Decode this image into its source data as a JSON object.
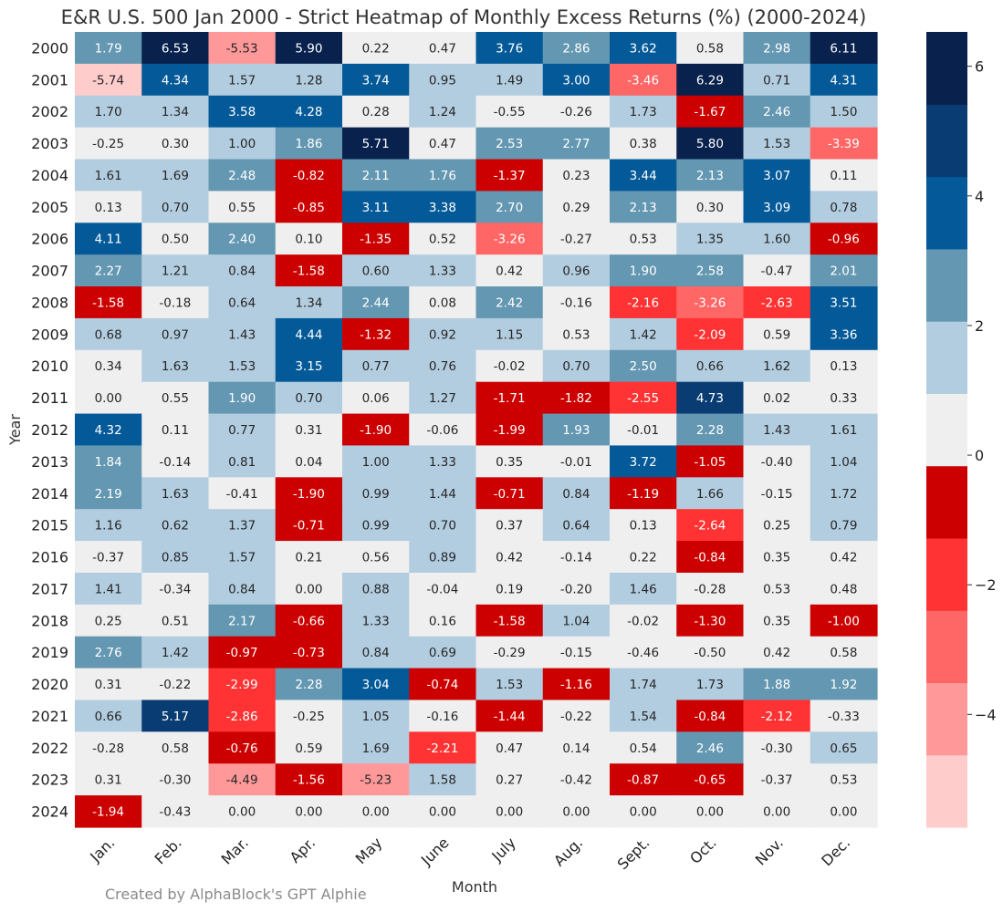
{
  "chart_data": {
    "type": "heatmap",
    "title": "E&R U.S. 500 Jan 2000 - Strict Heatmap of Monthly Excess Returns (%) (2000-2024)",
    "xlabel": "Month",
    "ylabel": "Year",
    "months": [
      "Jan.",
      "Feb.",
      "Mar.",
      "Apr.",
      "May",
      "June",
      "July",
      "Aug.",
      "Sept.",
      "Oct.",
      "Nov.",
      "Dec."
    ],
    "years": [
      "2000",
      "2001",
      "2002",
      "2003",
      "2004",
      "2005",
      "2006",
      "2007",
      "2008",
      "2009",
      "2010",
      "2011",
      "2012",
      "2013",
      "2014",
      "2015",
      "2016",
      "2017",
      "2018",
      "2019",
      "2020",
      "2021",
      "2022",
      "2023",
      "2024"
    ],
    "values": [
      [
        "1.79",
        "6.53",
        "-5.53",
        "5.90",
        "0.22",
        "0.47",
        "3.76",
        "2.86",
        "3.62",
        "0.58",
        "2.98",
        "6.11"
      ],
      [
        "-5.74",
        "4.34",
        "1.57",
        "1.28",
        "3.74",
        "0.95",
        "1.49",
        "3.00",
        "-3.46",
        "6.29",
        "0.71",
        "4.31"
      ],
      [
        "1.70",
        "1.34",
        "3.58",
        "4.28",
        "0.28",
        "1.24",
        "-0.55",
        "-0.26",
        "1.73",
        "-1.67",
        "2.46",
        "1.50"
      ],
      [
        "-0.25",
        "0.30",
        "1.00",
        "1.86",
        "5.71",
        "0.47",
        "2.53",
        "2.77",
        "0.38",
        "5.80",
        "1.53",
        "-3.39"
      ],
      [
        "1.61",
        "1.69",
        "2.48",
        "-0.82",
        "2.11",
        "1.76",
        "-1.37",
        "0.23",
        "3.44",
        "2.13",
        "3.07",
        "0.11"
      ],
      [
        "0.13",
        "0.70",
        "0.55",
        "-0.85",
        "3.11",
        "3.38",
        "2.70",
        "0.29",
        "2.13",
        "0.30",
        "3.09",
        "0.78"
      ],
      [
        "4.11",
        "0.50",
        "2.40",
        "0.10",
        "-1.35",
        "0.52",
        "-3.26",
        "-0.27",
        "0.53",
        "1.35",
        "1.60",
        "-0.96"
      ],
      [
        "2.27",
        "1.21",
        "0.84",
        "-1.58",
        "0.60",
        "1.33",
        "0.42",
        "0.96",
        "1.90",
        "2.58",
        "-0.47",
        "2.01"
      ],
      [
        "-1.58",
        "-0.18",
        "0.64",
        "1.34",
        "2.44",
        "0.08",
        "2.42",
        "-0.16",
        "-2.16",
        "-3.26",
        "-2.63",
        "3.51"
      ],
      [
        "0.68",
        "0.97",
        "1.43",
        "4.44",
        "-1.32",
        "0.92",
        "1.15",
        "0.53",
        "1.42",
        "-2.09",
        "0.59",
        "3.36"
      ],
      [
        "0.34",
        "1.63",
        "1.53",
        "3.15",
        "0.77",
        "0.76",
        "-0.02",
        "0.70",
        "2.50",
        "0.66",
        "1.62",
        "0.13"
      ],
      [
        "0.00",
        "0.55",
        "1.90",
        "0.70",
        "0.06",
        "1.27",
        "-1.71",
        "-1.82",
        "-2.55",
        "4.73",
        "0.02",
        "0.33"
      ],
      [
        "4.32",
        "0.11",
        "0.77",
        "0.31",
        "-1.90",
        "-0.06",
        "-1.99",
        "1.93",
        "-0.01",
        "2.28",
        "1.43",
        "1.61"
      ],
      [
        "1.84",
        "-0.14",
        "0.81",
        "0.04",
        "1.00",
        "1.33",
        "0.35",
        "-0.01",
        "3.72",
        "-1.05",
        "-0.40",
        "1.04"
      ],
      [
        "2.19",
        "1.63",
        "-0.41",
        "-1.90",
        "0.99",
        "1.44",
        "-0.71",
        "0.84",
        "-1.19",
        "1.66",
        "-0.15",
        "1.72"
      ],
      [
        "1.16",
        "0.62",
        "1.37",
        "-0.71",
        "0.99",
        "0.70",
        "0.37",
        "0.64",
        "0.13",
        "-2.64",
        "0.25",
        "0.79"
      ],
      [
        "-0.37",
        "0.85",
        "1.57",
        "0.21",
        "0.56",
        "0.89",
        "0.42",
        "-0.14",
        "0.22",
        "-0.84",
        "0.35",
        "0.42"
      ],
      [
        "1.41",
        "-0.34",
        "0.84",
        "0.00",
        "0.88",
        "-0.04",
        "0.19",
        "-0.20",
        "1.46",
        "-0.28",
        "0.53",
        "0.48"
      ],
      [
        "0.25",
        "0.51",
        "2.17",
        "-0.66",
        "1.33",
        "0.16",
        "-1.58",
        "1.04",
        "-0.02",
        "-1.30",
        "0.35",
        "-1.00"
      ],
      [
        "2.76",
        "1.42",
        "-0.97",
        "-0.73",
        "0.84",
        "0.69",
        "-0.29",
        "-0.15",
        "-0.46",
        "-0.50",
        "0.42",
        "0.58"
      ],
      [
        "0.31",
        "-0.22",
        "-2.99",
        "2.28",
        "3.04",
        "-0.74",
        "1.53",
        "-1.16",
        "1.74",
        "1.73",
        "1.88",
        "1.92"
      ],
      [
        "0.66",
        "5.17",
        "-2.86",
        "-0.25",
        "1.05",
        "-0.16",
        "-1.44",
        "-0.22",
        "1.54",
        "-0.84",
        "-2.12",
        "-0.33"
      ],
      [
        "-0.28",
        "0.58",
        "-0.76",
        "0.59",
        "1.69",
        "-2.21",
        "0.47",
        "0.14",
        "0.54",
        "2.46",
        "-0.30",
        "0.65"
      ],
      [
        "0.31",
        "-0.30",
        "-4.49",
        "-1.56",
        "-5.23",
        "1.58",
        "0.27",
        "-0.42",
        "-0.87",
        "-0.65",
        "-0.37",
        "0.53"
      ],
      [
        "-1.94",
        "-0.43",
        "0.00",
        "0.00",
        "0.00",
        "0.00",
        "0.00",
        "0.00",
        "0.00",
        "0.00",
        "0.00",
        "0.00"
      ]
    ],
    "color_bins": [
      {
        "min": 5.5,
        "color": "#08214d"
      },
      {
        "min": 4.5,
        "color": "#083c73"
      },
      {
        "min": 3.0,
        "color": "#045a98"
      },
      {
        "min": 1.75,
        "color": "#6497b1"
      },
      {
        "min": 0.6,
        "color": "#b3cde0"
      },
      {
        "min": -0.6,
        "color": "#efefef"
      },
      {
        "min": -2.0,
        "color": "#cc0000"
      },
      {
        "min": -3.0,
        "color": "#ff3333"
      },
      {
        "min": -4.0,
        "color": "#ff6666"
      },
      {
        "min": -5.6,
        "color": "#ff9999"
      },
      {
        "min": -99,
        "color": "#ffcccc"
      }
    ],
    "colorbar": {
      "range": [
        -5.74,
        6.53
      ],
      "ticks": [
        "6",
        "4",
        "2",
        "0",
        "−2",
        "−4"
      ],
      "tick_values": [
        6,
        4,
        2,
        0,
        -2,
        -4
      ],
      "segments": [
        "#ffcccc",
        "#ff9999",
        "#ff6666",
        "#ff3333",
        "#cc0000",
        "#efefef",
        "#b3cde0",
        "#6497b1",
        "#045a98",
        "#083c73",
        "#08214d"
      ]
    },
    "grid": false
  },
  "footer": {
    "credit": "Created by AlphaBlock's GPT Alphie"
  }
}
